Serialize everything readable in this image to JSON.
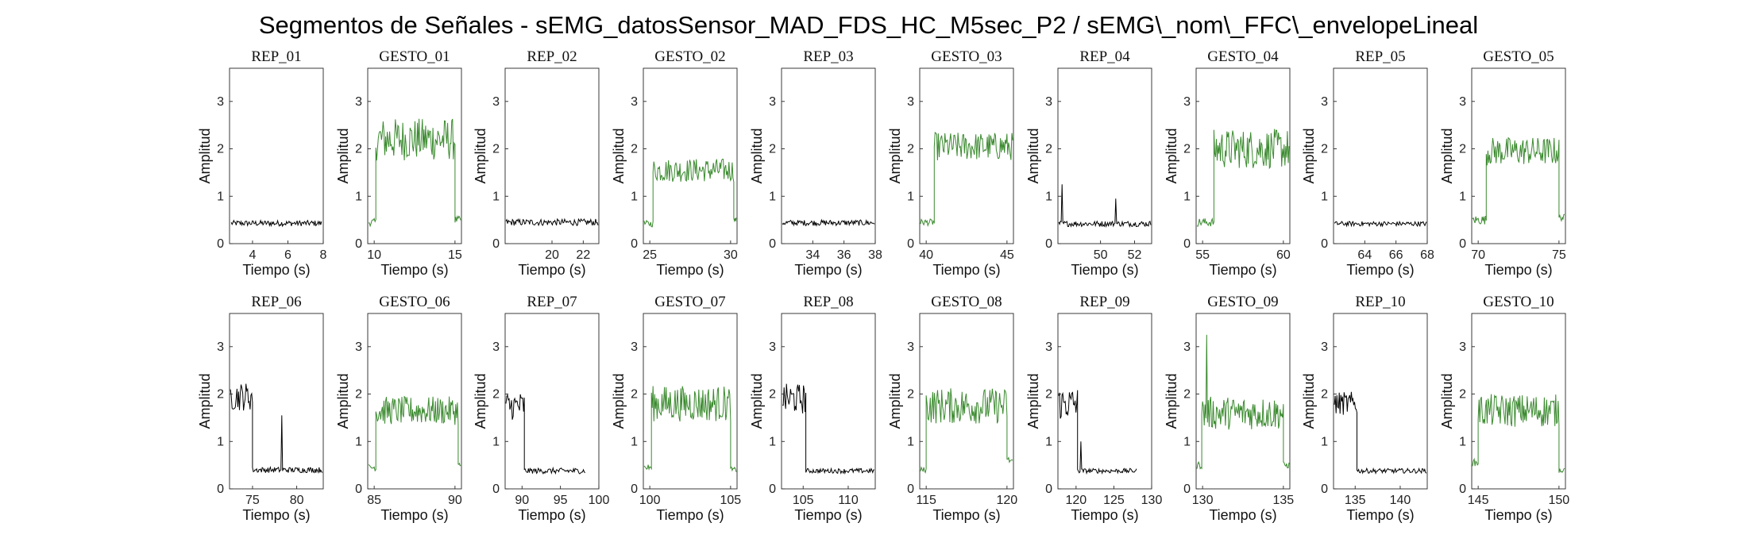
{
  "figure_title": "Segmentos de Señales - sEMG_datosSensor_MAD_FDS_HC_M5sec_P2 / sEMG\\_nom\\_FFC\\_envelopeLineal",
  "colors": {
    "rep": "#000000",
    "gesto": "#3a8a2e"
  },
  "chart_data": [
    {
      "type": "line",
      "title": "REP_01",
      "xlabel": "Tiempo (s)",
      "ylabel": "Amplitud",
      "xlim": [
        2.7,
        8
      ],
      "ylim": [
        0,
        3.7
      ],
      "xticks": [
        4,
        6,
        8
      ],
      "yticks": [
        0,
        1,
        2,
        3
      ],
      "grid": false,
      "color": "#000000",
      "segments": [
        {
          "x0": 2.8,
          "x1": 7.9,
          "base": 0.43,
          "noise": 0.06
        }
      ]
    },
    {
      "type": "line",
      "title": "GESTO_01",
      "xlabel": "Tiempo (s)",
      "ylabel": "Amplitud",
      "xlim": [
        9.6,
        15.4
      ],
      "ylim": [
        0,
        3.7
      ],
      "xticks": [
        10,
        15
      ],
      "yticks": [
        0,
        1,
        2,
        3
      ],
      "grid": false,
      "color": "#3a8a2e",
      "segments": [
        {
          "x0": 9.65,
          "x1": 10.1,
          "base": 0.45,
          "noise": 0.08
        },
        {
          "x0": 10.1,
          "x1": 15.0,
          "base": 2.2,
          "noise": 0.45
        },
        {
          "x0": 15.0,
          "x1": 15.35,
          "base": 0.5,
          "noise": 0.08
        }
      ]
    },
    {
      "type": "line",
      "title": "REP_02",
      "xlabel": "Tiempo (s)",
      "ylabel": "Amplitud",
      "xlim": [
        17,
        23
      ],
      "ylim": [
        0,
        3.7
      ],
      "xticks": [
        20,
        22
      ],
      "yticks": [
        0,
        1,
        2,
        3
      ],
      "grid": false,
      "color": "#000000",
      "segments": [
        {
          "x0": 17.05,
          "x1": 22.95,
          "base": 0.45,
          "noise": 0.07
        }
      ]
    },
    {
      "type": "line",
      "title": "GESTO_02",
      "xlabel": "Tiempo (s)",
      "ylabel": "Amplitud",
      "xlim": [
        24.6,
        30.4
      ],
      "ylim": [
        0,
        3.7
      ],
      "xticks": [
        25,
        30
      ],
      "yticks": [
        0,
        1,
        2,
        3
      ],
      "grid": false,
      "color": "#3a8a2e",
      "segments": [
        {
          "x0": 24.65,
          "x1": 25.2,
          "base": 0.42,
          "noise": 0.07
        },
        {
          "x0": 25.2,
          "x1": 30.2,
          "base": 1.55,
          "noise": 0.25
        },
        {
          "x0": 30.2,
          "x1": 30.35,
          "base": 0.5,
          "noise": 0.05
        }
      ]
    },
    {
      "type": "line",
      "title": "REP_03",
      "xlabel": "Tiempo (s)",
      "ylabel": "Amplitud",
      "xlim": [
        32,
        38
      ],
      "ylim": [
        0,
        3.7
      ],
      "xticks": [
        34,
        36,
        38
      ],
      "yticks": [
        0,
        1,
        2,
        3
      ],
      "grid": false,
      "color": "#000000",
      "segments": [
        {
          "x0": 32.05,
          "x1": 37.95,
          "base": 0.44,
          "noise": 0.06
        }
      ]
    },
    {
      "type": "line",
      "title": "GESTO_03",
      "xlabel": "Tiempo (s)",
      "ylabel": "Amplitud",
      "xlim": [
        39.6,
        45.4
      ],
      "ylim": [
        0,
        3.7
      ],
      "xticks": [
        40,
        45
      ],
      "yticks": [
        0,
        1,
        2,
        3
      ],
      "grid": false,
      "color": "#3a8a2e",
      "segments": [
        {
          "x0": 39.65,
          "x1": 40.5,
          "base": 0.45,
          "noise": 0.07
        },
        {
          "x0": 40.5,
          "x1": 45.35,
          "base": 2.05,
          "noise": 0.3
        }
      ]
    },
    {
      "type": "line",
      "title": "REP_04",
      "xlabel": "Tiempo (s)",
      "ylabel": "Amplitud",
      "xlim": [
        47.5,
        53
      ],
      "ylim": [
        0,
        3.7
      ],
      "xticks": [
        50,
        52
      ],
      "yticks": [
        0,
        1,
        2,
        3
      ],
      "grid": false,
      "color": "#000000",
      "segments": [
        {
          "x0": 47.55,
          "x1": 52.95,
          "base": 0.42,
          "noise": 0.06
        }
      ],
      "spikes": [
        {
          "x": 47.75,
          "y": 1.25
        },
        {
          "x": 50.9,
          "y": 0.95
        }
      ]
    },
    {
      "type": "line",
      "title": "GESTO_04",
      "xlabel": "Tiempo (s)",
      "ylabel": "Amplitud",
      "xlim": [
        54.6,
        60.4
      ],
      "ylim": [
        0,
        3.7
      ],
      "xticks": [
        55,
        60
      ],
      "yticks": [
        0,
        1,
        2,
        3
      ],
      "grid": false,
      "color": "#3a8a2e",
      "segments": [
        {
          "x0": 54.65,
          "x1": 55.7,
          "base": 0.45,
          "noise": 0.09
        },
        {
          "x0": 55.7,
          "x1": 60.35,
          "base": 2.0,
          "noise": 0.42
        }
      ]
    },
    {
      "type": "line",
      "title": "REP_05",
      "xlabel": "Tiempo (s)",
      "ylabel": "Amplitud",
      "xlim": [
        62,
        68
      ],
      "ylim": [
        0,
        3.7
      ],
      "xticks": [
        64,
        66,
        68
      ],
      "yticks": [
        0,
        1,
        2,
        3
      ],
      "grid": false,
      "color": "#000000",
      "segments": [
        {
          "x0": 62.05,
          "x1": 67.95,
          "base": 0.42,
          "noise": 0.05
        }
      ]
    },
    {
      "type": "line",
      "title": "GESTO_05",
      "xlabel": "Tiempo (s)",
      "ylabel": "Amplitud",
      "xlim": [
        69.6,
        75.4
      ],
      "ylim": [
        0,
        3.7
      ],
      "xticks": [
        70,
        75
      ],
      "yticks": [
        0,
        1,
        2,
        3
      ],
      "grid": false,
      "color": "#3a8a2e",
      "segments": [
        {
          "x0": 69.65,
          "x1": 70.5,
          "base": 0.5,
          "noise": 0.1
        },
        {
          "x0": 70.5,
          "x1": 75.0,
          "base": 1.95,
          "noise": 0.3
        },
        {
          "x0": 75.0,
          "x1": 75.35,
          "base": 0.55,
          "noise": 0.07
        }
      ]
    },
    {
      "type": "line",
      "title": "REP_06",
      "xlabel": "Tiempo (s)",
      "ylabel": "Amplitud",
      "xlim": [
        72.4,
        83
      ],
      "ylim": [
        0,
        3.7
      ],
      "xticks": [
        75,
        80
      ],
      "yticks": [
        0,
        1,
        2,
        3
      ],
      "grid": false,
      "color": "#000000",
      "segments": [
        {
          "x0": 72.5,
          "x1": 75.0,
          "base": 1.95,
          "noise": 0.3
        },
        {
          "x0": 75.0,
          "x1": 82.9,
          "base": 0.4,
          "noise": 0.06
        }
      ],
      "spikes": [
        {
          "x": 78.3,
          "y": 1.55
        }
      ]
    },
    {
      "type": "line",
      "title": "GESTO_06",
      "xlabel": "Tiempo (s)",
      "ylabel": "Amplitud",
      "xlim": [
        84.6,
        90.4
      ],
      "ylim": [
        0,
        3.7
      ],
      "xticks": [
        85,
        90
      ],
      "yticks": [
        0,
        1,
        2,
        3
      ],
      "grid": false,
      "color": "#3a8a2e",
      "segments": [
        {
          "x0": 84.65,
          "x1": 85.1,
          "base": 0.45,
          "noise": 0.07
        },
        {
          "x0": 85.1,
          "x1": 90.2,
          "base": 1.65,
          "noise": 0.3
        },
        {
          "x0": 90.2,
          "x1": 90.35,
          "base": 0.5,
          "noise": 0.05
        }
      ]
    },
    {
      "type": "line",
      "title": "REP_07",
      "xlabel": "Tiempo (s)",
      "ylabel": "Amplitud",
      "xlim": [
        87.8,
        100
      ],
      "ylim": [
        0,
        3.7
      ],
      "xticks": [
        90,
        95,
        100
      ],
      "yticks": [
        0,
        1,
        2,
        3
      ],
      "grid": false,
      "color": "#000000",
      "segments": [
        {
          "x0": 87.9,
          "x1": 90.3,
          "base": 1.75,
          "noise": 0.3
        },
        {
          "x0": 90.3,
          "x1": 98.2,
          "base": 0.38,
          "noise": 0.06
        }
      ]
    },
    {
      "type": "line",
      "title": "GESTO_07",
      "xlabel": "Tiempo (s)",
      "ylabel": "Amplitud",
      "xlim": [
        99.6,
        105.4
      ],
      "ylim": [
        0,
        3.7
      ],
      "xticks": [
        100,
        105
      ],
      "yticks": [
        0,
        1,
        2,
        3
      ],
      "grid": false,
      "color": "#3a8a2e",
      "segments": [
        {
          "x0": 99.65,
          "x1": 100.1,
          "base": 0.45,
          "noise": 0.07
        },
        {
          "x0": 100.1,
          "x1": 105.0,
          "base": 1.8,
          "noise": 0.38
        },
        {
          "x0": 105.0,
          "x1": 105.35,
          "base": 0.4,
          "noise": 0.06
        }
      ]
    },
    {
      "type": "line",
      "title": "REP_08",
      "xlabel": "Tiempo (s)",
      "ylabel": "Amplitud",
      "xlim": [
        102.6,
        113
      ],
      "ylim": [
        0,
        3.7
      ],
      "xticks": [
        105,
        110
      ],
      "yticks": [
        0,
        1,
        2,
        3
      ],
      "grid": false,
      "color": "#000000",
      "segments": [
        {
          "x0": 102.7,
          "x1": 105.3,
          "base": 1.9,
          "noise": 0.32
        },
        {
          "x0": 105.3,
          "x1": 112.9,
          "base": 0.38,
          "noise": 0.05
        }
      ]
    },
    {
      "type": "line",
      "title": "GESTO_08",
      "xlabel": "Tiempo (s)",
      "ylabel": "Amplitud",
      "xlim": [
        114.6,
        120.4
      ],
      "ylim": [
        0,
        3.7
      ],
      "xticks": [
        115,
        120
      ],
      "yticks": [
        0,
        1,
        2,
        3
      ],
      "grid": false,
      "color": "#3a8a2e",
      "segments": [
        {
          "x0": 114.65,
          "x1": 115.0,
          "base": 0.4,
          "noise": 0.06
        },
        {
          "x0": 115.0,
          "x1": 120.0,
          "base": 1.75,
          "noise": 0.38
        },
        {
          "x0": 120.0,
          "x1": 120.35,
          "base": 0.6,
          "noise": 0.08
        }
      ]
    },
    {
      "type": "line",
      "title": "REP_09",
      "xlabel": "Tiempo (s)",
      "ylabel": "Amplitud",
      "xlim": [
        117.6,
        130
      ],
      "ylim": [
        0,
        3.7
      ],
      "xticks": [
        120,
        125,
        130
      ],
      "yticks": [
        0,
        1,
        2,
        3
      ],
      "grid": false,
      "color": "#000000",
      "segments": [
        {
          "x0": 117.7,
          "x1": 120.2,
          "base": 1.8,
          "noise": 0.35
        },
        {
          "x0": 120.2,
          "x1": 128.0,
          "base": 0.38,
          "noise": 0.05
        }
      ],
      "spikes": [
        {
          "x": 120.6,
          "y": 1.0
        }
      ]
    },
    {
      "type": "line",
      "title": "GESTO_09",
      "xlabel": "Tiempo (s)",
      "ylabel": "Amplitud",
      "xlim": [
        129.6,
        135.4
      ],
      "ylim": [
        0,
        3.7
      ],
      "xticks": [
        130,
        135
      ],
      "yticks": [
        0,
        1,
        2,
        3
      ],
      "grid": false,
      "color": "#3a8a2e",
      "segments": [
        {
          "x0": 129.65,
          "x1": 129.95,
          "base": 0.5,
          "noise": 0.08
        },
        {
          "x0": 129.95,
          "x1": 135.0,
          "base": 1.6,
          "noise": 0.35
        },
        {
          "x0": 135.0,
          "x1": 135.35,
          "base": 0.5,
          "noise": 0.07
        }
      ],
      "spikes": [
        {
          "x": 130.25,
          "y": 3.25
        }
      ]
    },
    {
      "type": "line",
      "title": "REP_10",
      "xlabel": "Tiempo (s)",
      "ylabel": "Amplitud",
      "xlim": [
        132.6,
        143
      ],
      "ylim": [
        0,
        3.7
      ],
      "xticks": [
        135,
        140
      ],
      "yticks": [
        0,
        1,
        2,
        3
      ],
      "grid": false,
      "color": "#000000",
      "segments": [
        {
          "x0": 132.7,
          "x1": 135.2,
          "base": 1.8,
          "noise": 0.25
        },
        {
          "x0": 135.2,
          "x1": 142.9,
          "base": 0.38,
          "noise": 0.05
        }
      ]
    },
    {
      "type": "line",
      "title": "GESTO_10",
      "xlabel": "Tiempo (s)",
      "ylabel": "Amplitud",
      "xlim": [
        144.6,
        150.4
      ],
      "ylim": [
        0,
        3.7
      ],
      "xticks": [
        145,
        150
      ],
      "yticks": [
        0,
        1,
        2,
        3
      ],
      "grid": false,
      "color": "#3a8a2e",
      "segments": [
        {
          "x0": 144.65,
          "x1": 145.0,
          "base": 0.55,
          "noise": 0.08
        },
        {
          "x0": 145.0,
          "x1": 150.0,
          "base": 1.65,
          "noise": 0.35
        },
        {
          "x0": 150.0,
          "x1": 150.35,
          "base": 0.4,
          "noise": 0.06
        }
      ]
    }
  ]
}
